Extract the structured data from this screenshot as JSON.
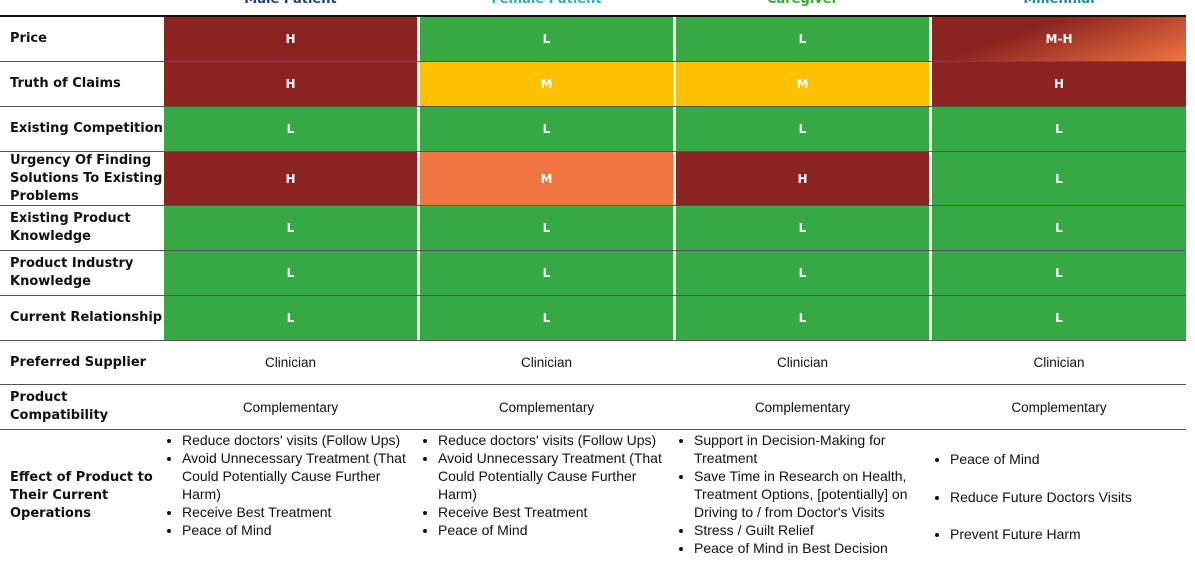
{
  "table": {
    "columns": [
      "Male Patient",
      "Female Patient",
      "Caregiver",
      "Millennial"
    ],
    "column_colors": [
      "#1f3c88",
      "#2ab0c0",
      "#3baa35",
      "#1b8aa8"
    ],
    "rows": [
      {
        "label": "Price",
        "cells": [
          {
            "text": "H",
            "color": "#8b2420"
          },
          {
            "text": "L",
            "color": "#36a844"
          },
          {
            "text": "L",
            "color": "#36a844"
          },
          {
            "text": "M-H",
            "color": [
              "#8b2420",
              "#f07440"
            ]
          }
        ]
      },
      {
        "label": "Truth of Claims",
        "cells": [
          {
            "text": "H",
            "color": "#8b2420"
          },
          {
            "text": "M",
            "color": "#ffc000"
          },
          {
            "text": "M",
            "color": "#ffc000"
          },
          {
            "text": "H",
            "color": "#8b2420"
          }
        ]
      },
      {
        "label": "Existing Competition",
        "cells": [
          {
            "text": "L",
            "color": "#36a844"
          },
          {
            "text": "L",
            "color": "#36a844"
          },
          {
            "text": "L",
            "color": "#36a844"
          },
          {
            "text": "L",
            "color": "#36a844"
          }
        ]
      },
      {
        "label": "Urgency Of Finding Solutions To Existing Problems",
        "cells": [
          {
            "text": "H",
            "color": "#8b2420"
          },
          {
            "text": "M",
            "color": "#f07440"
          },
          {
            "text": "H",
            "color": "#8b2420"
          },
          {
            "text": "L",
            "color": "#36a844"
          }
        ]
      },
      {
        "label": "Existing Product Knowledge",
        "cells": [
          {
            "text": "L",
            "color": "#36a844"
          },
          {
            "text": "L",
            "color": "#36a844"
          },
          {
            "text": "L",
            "color": "#36a844"
          },
          {
            "text": "L",
            "color": "#36a844"
          }
        ]
      },
      {
        "label": "Product Industry Knowledge",
        "cells": [
          {
            "text": "L",
            "color": "#36a844"
          },
          {
            "text": "L",
            "color": "#36a844"
          },
          {
            "text": "L",
            "color": "#36a844"
          },
          {
            "text": "L",
            "color": "#36a844"
          }
        ]
      },
      {
        "label": "Current Relationship",
        "cells": [
          {
            "text": "L",
            "color": "#36a844"
          },
          {
            "text": "L",
            "color": "#36a844"
          },
          {
            "text": "L",
            "color": "#36a844"
          },
          {
            "text": "L",
            "color": "#36a844"
          }
        ]
      },
      {
        "label": "Preferred Supplier",
        "cells": [
          "Clinician",
          "Clinician",
          "Clinician",
          "Clinician"
        ]
      },
      {
        "label": "Product Compatibility",
        "cells": [
          "Complementary",
          "Complementary",
          "Complementary",
          "Complementary"
        ]
      },
      {
        "label": "Effect of Product to Their Current Operations",
        "cells": [
          [
            "Reduce doctors' visits (Follow Ups)",
            "Avoid Unnecessary Treatment (That Could Potentially Cause Further Harm)",
            "Receive Best Treatment",
            "Peace of Mind"
          ],
          [
            "Reduce doctors' visits (Follow Ups)",
            "Avoid Unnecessary Treatment (That Could Potentially Cause Further Harm)",
            "Receive Best Treatment",
            "Peace of Mind"
          ],
          [
            "Support in Decision-Making for Treatment",
            "Save Time in Research on Health, Treatment Options, [potentially] on Driving to / from Doctor's Visits",
            "Stress / Guilt Relief",
            "Peace of Mind in Best Decision"
          ],
          [
            "Peace of Mind",
            "Reduce Future Doctors Visits",
            "Prevent Future Harm"
          ]
        ]
      }
    ]
  }
}
